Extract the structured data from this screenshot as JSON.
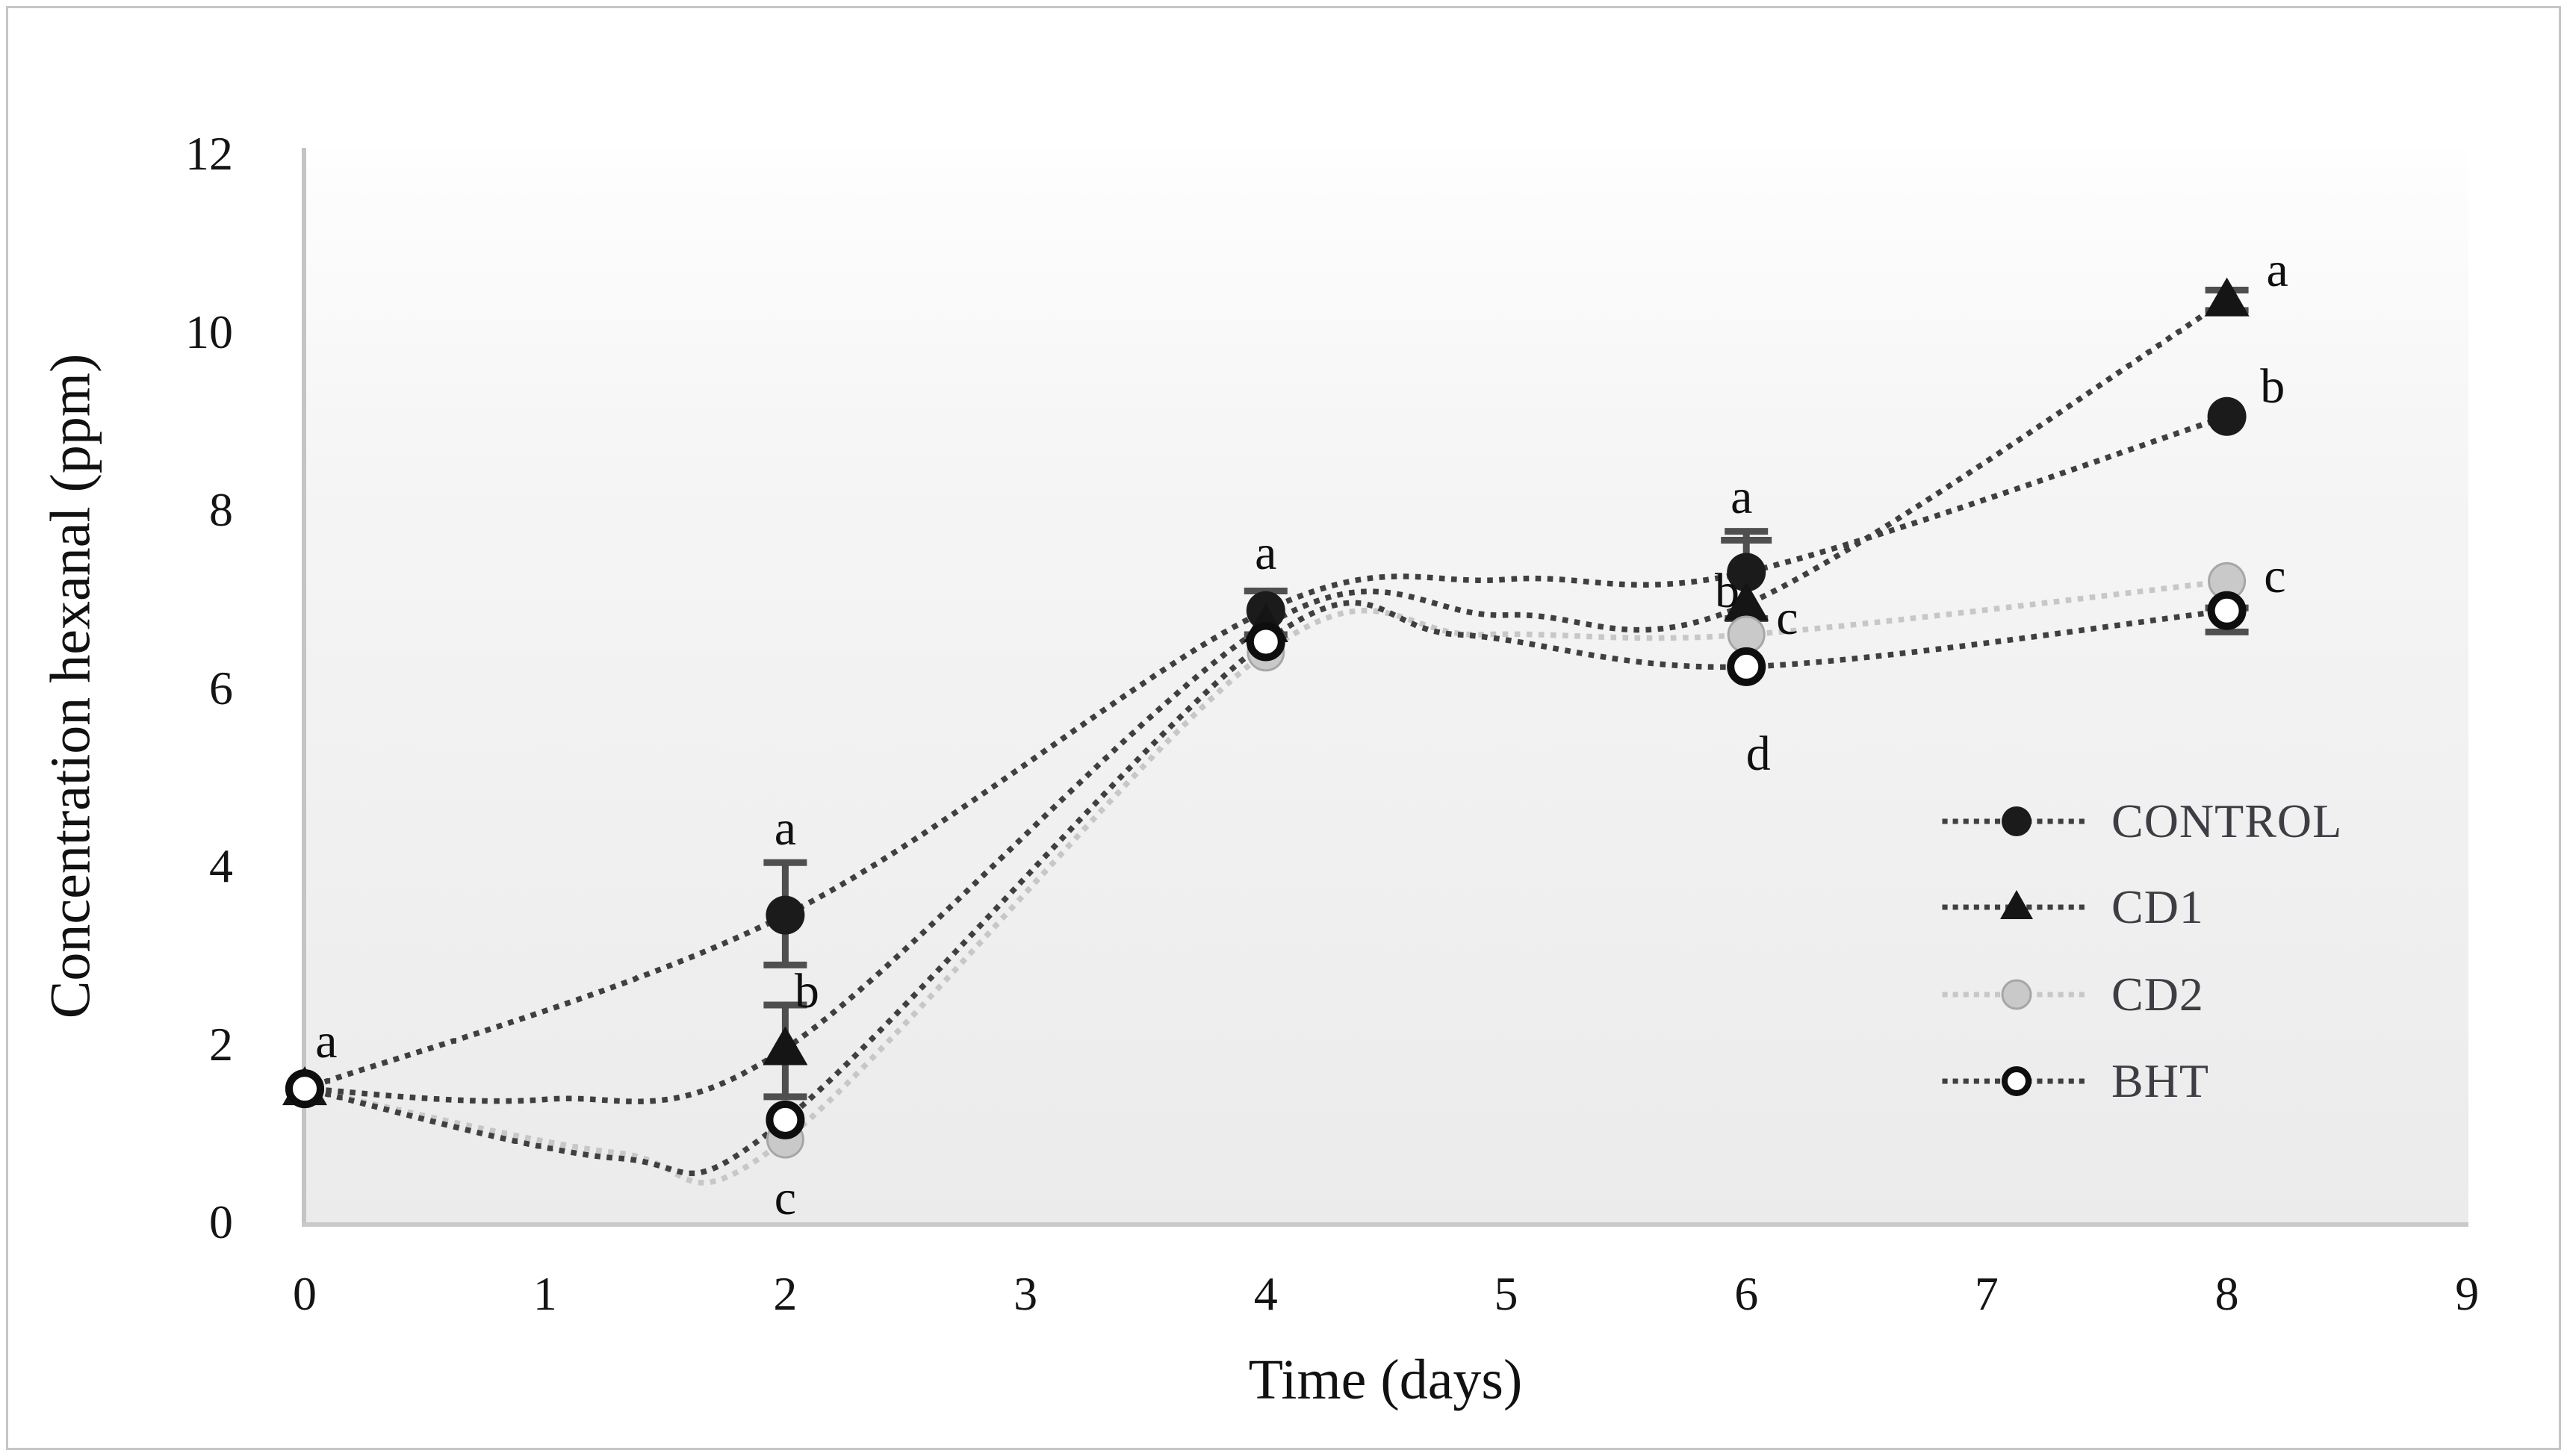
{
  "figure": {
    "x_axis_title": "Time (days)",
    "y_axis_title": "Concentration hexanal (ppm)"
  },
  "chart_data": {
    "type": "line",
    "title": "",
    "xlabel": "Time (days)",
    "ylabel": "Concentration hexanal (ppm)",
    "xlim": [
      0,
      9
    ],
    "ylim": [
      0,
      12
    ],
    "x_ticks": [
      "0",
      "1",
      "2",
      "3",
      "4",
      "5",
      "6",
      "7",
      "8",
      "9"
    ],
    "y_ticks": [
      "0",
      "2",
      "4",
      "6",
      "8",
      "10",
      "12"
    ],
    "grid": false,
    "legend_position": "right-middle",
    "categories": [
      0,
      2,
      4,
      6,
      8
    ],
    "series": [
      {
        "name": "CONTROL",
        "marker": "filled-circle",
        "marker_color": "#1b1b1b",
        "line_color": "#3f3f3f",
        "values": [
          1.5,
          3.45,
          6.87,
          7.3,
          9.05
        ],
        "curve_points": [
          [
            0,
            1.5
          ],
          [
            2,
            3.45
          ],
          [
            4,
            6.87
          ],
          [
            5,
            7.22
          ],
          [
            6,
            7.3
          ],
          [
            8,
            9.05
          ]
        ]
      },
      {
        "name": "CD1",
        "marker": "filled-triangle",
        "marker_color": "#151515",
        "line_color": "#3f3f3f",
        "values": [
          1.5,
          1.95,
          6.7,
          6.94,
          10.36
        ],
        "curve_points": [
          [
            0,
            1.5
          ],
          [
            1,
            1.38
          ],
          [
            2,
            1.95
          ],
          [
            4,
            6.7
          ],
          [
            5,
            6.82
          ],
          [
            6,
            6.94
          ],
          [
            8,
            10.36
          ]
        ]
      },
      {
        "name": "CD2",
        "marker": "gray-circle",
        "marker_color": "#c9c9c9",
        "line_color": "#c7c7c7",
        "values": [
          1.5,
          0.93,
          6.4,
          6.6,
          7.2
        ],
        "curve_points": [
          [
            0,
            1.5
          ],
          [
            1.3,
            0.78
          ],
          [
            2,
            0.93
          ],
          [
            4,
            6.4
          ],
          [
            4.9,
            6.6
          ],
          [
            6,
            6.6
          ],
          [
            8,
            7.2
          ]
        ]
      },
      {
        "name": "BHT",
        "marker": "open-circle",
        "marker_color": "#ffffff",
        "line_color": "#3f3f3f",
        "values": [
          1.5,
          1.15,
          6.52,
          6.24,
          6.87
        ],
        "curve_points": [
          [
            0,
            1.5
          ],
          [
            1.3,
            0.72
          ],
          [
            2,
            1.15
          ],
          [
            4,
            6.52
          ],
          [
            4.8,
            6.6
          ],
          [
            6,
            6.24
          ],
          [
            8,
            6.87
          ]
        ]
      }
    ],
    "error_bars": [
      {
        "series": "CONTROL",
        "day": 2,
        "top": 4.04,
        "bottom": 2.89,
        "extra_caps": []
      },
      {
        "series": "CD1",
        "day": 2,
        "top": 2.44,
        "bottom": 1.41,
        "extra_caps": []
      },
      {
        "series": "CONTROL",
        "day": 4,
        "top": 7.09,
        "bottom": 6.6,
        "extra_caps": []
      },
      {
        "series": "CONTROL",
        "day": 6,
        "top": 7.76,
        "bottom": 6.78,
        "extra_caps": [
          7.66
        ]
      },
      {
        "series": "CD1",
        "day": 8,
        "top": 10.47,
        "bottom": 10.24,
        "extra_caps": []
      },
      {
        "series": "BHT",
        "day": 8,
        "top": 6.9,
        "bottom": 6.63,
        "extra_caps": []
      }
    ],
    "annotations": [
      {
        "label": "a",
        "day": 0.09,
        "value": 2.03
      },
      {
        "label": "a",
        "day": 2.0,
        "value": 4.42
      },
      {
        "label": "b",
        "day": 2.09,
        "value": 2.59
      },
      {
        "label": "c",
        "day": 2.0,
        "value": 0.27
      },
      {
        "label": "a",
        "day": 4.0,
        "value": 7.51
      },
      {
        "label": "a",
        "day": 5.98,
        "value": 8.14
      },
      {
        "label": "b",
        "day": 5.92,
        "value": 7.09
      },
      {
        "label": "c",
        "day": 6.17,
        "value": 6.78
      },
      {
        "label": "d",
        "day": 6.05,
        "value": 5.26
      },
      {
        "label": "a",
        "day": 8.21,
        "value": 10.69
      },
      {
        "label": "b",
        "day": 8.19,
        "value": 9.38
      },
      {
        "label": "c",
        "day": 8.2,
        "value": 7.25
      }
    ],
    "legend": [
      "CONTROL",
      "CD1",
      "CD2",
      "BHT"
    ]
  }
}
